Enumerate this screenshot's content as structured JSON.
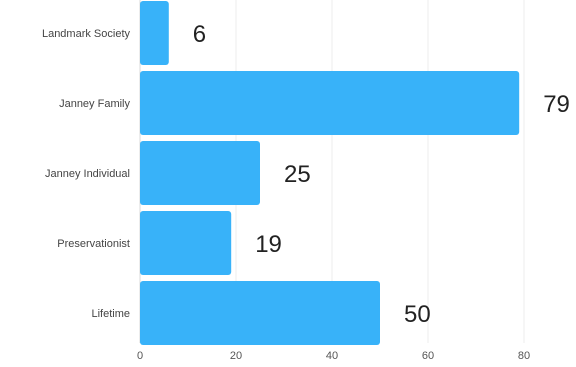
{
  "chart_data": {
    "type": "bar",
    "orientation": "horizontal",
    "categories": [
      "Landmark Society",
      "Janney Family",
      "Janney Individual",
      "Preservationist",
      "Lifetime"
    ],
    "values": [
      6,
      79,
      25,
      19,
      50
    ],
    "xlim": [
      0,
      80
    ],
    "xticks": [
      0,
      20,
      40,
      60,
      80
    ],
    "grid": true,
    "data_labels": true,
    "bar_color": "#38b2f9"
  }
}
